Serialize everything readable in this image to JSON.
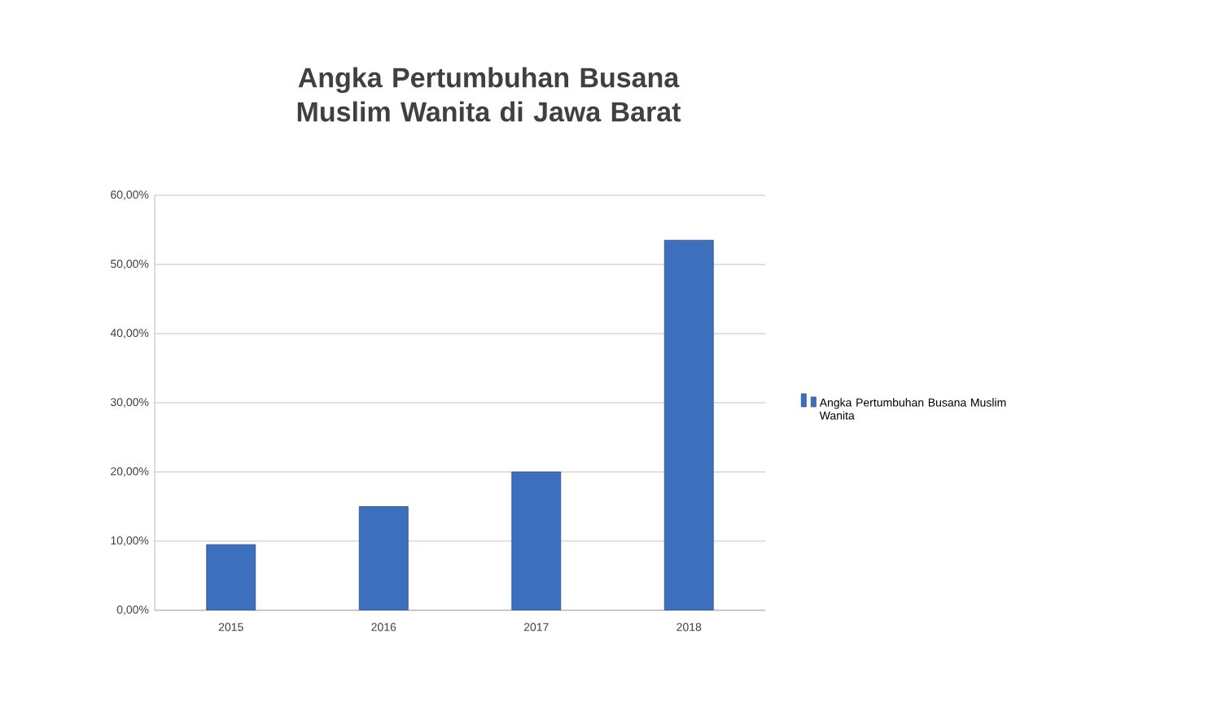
{
  "chart_data": {
    "type": "bar",
    "title": "Angka Pertumbuhan Busana Muslim Wanita di Jawa Barat",
    "categories": [
      "2015",
      "2016",
      "2017",
      "2018"
    ],
    "series": [
      {
        "name": "Angka Pertumbuhan Busana Muslim Wanita",
        "color": "#3d6fbf",
        "values": [
          9.5,
          15,
          20,
          53.5
        ]
      }
    ],
    "ylim": [
      0,
      60
    ],
    "yticks": [
      {
        "value": 0,
        "label": "0,00%"
      },
      {
        "value": 10,
        "label": "10,00%"
      },
      {
        "value": 20,
        "label": "20,00%"
      },
      {
        "value": 30,
        "label": "30,00%"
      },
      {
        "value": 40,
        "label": "40,00%"
      },
      {
        "value": 50,
        "label": "50,00%"
      },
      {
        "value": 60,
        "label": "60,00%"
      }
    ],
    "grid": "y",
    "legend": "right"
  }
}
